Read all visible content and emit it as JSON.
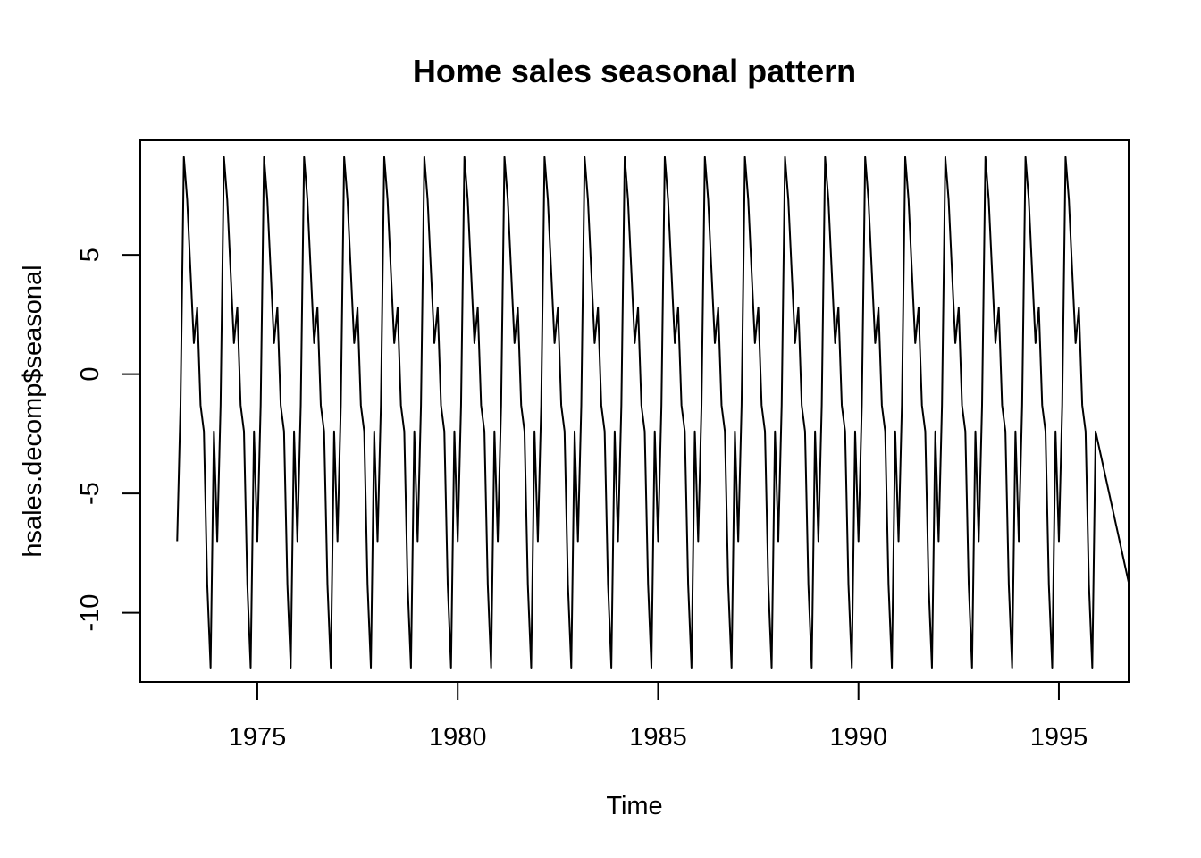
{
  "chart_data": {
    "type": "line",
    "title": "Home sales seasonal pattern",
    "xlabel": "Time",
    "ylabel": "hsales.decomp$seasonal",
    "xlim": [
      1972.08,
      1996.74
    ],
    "ylim": [
      -12.9,
      9.8
    ],
    "x_ticks": [
      1975,
      1980,
      1985,
      1990,
      1995
    ],
    "x_tick_labels": [
      "1975",
      "1980",
      "1985",
      "1990",
      "1995"
    ],
    "y_ticks": [
      -10,
      -5,
      0,
      5
    ],
    "y_tick_labels": [
      "-10",
      "-5",
      "0",
      "5"
    ],
    "grid": false,
    "line_color": "#000000",
    "series": [
      {
        "start": 1973.0,
        "frequency": 12,
        "periods": 23,
        "seasonal_cycle": [
          -7.0,
          -1.3,
          9.1,
          7.3,
          4.3,
          1.3,
          2.8,
          -1.3,
          -2.4,
          -8.8,
          -12.3,
          -2.4
        ],
        "last_value": -8.8
      }
    ]
  }
}
